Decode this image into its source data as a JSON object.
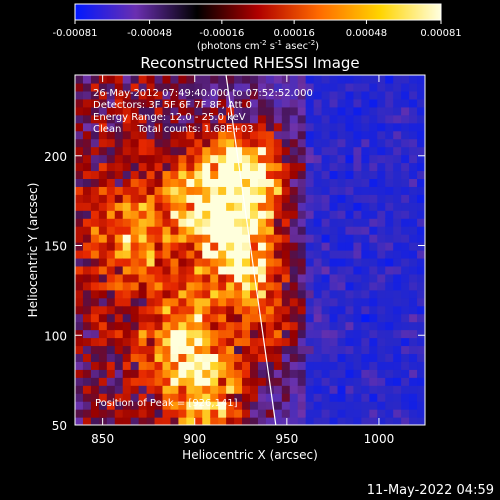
{
  "colorbar": {
    "tick_labels": [
      "-0.00081",
      "-0.00048",
      "-0.00016",
      "0.00016",
      "0.00048",
      "0.00081"
    ],
    "tick_values": [
      -0.00081,
      -0.00048,
      -0.00016,
      0.00016,
      0.00048,
      0.00081
    ],
    "units_prefix": "(photons cm",
    "units_exp1": "-2",
    "units_mid": " s",
    "units_exp2": "-1",
    "units_mid2": " asec",
    "units_exp3": "-2",
    "units_suffix": ")",
    "colors": [
      "#0018ff",
      "#6a2fb0",
      "#000000",
      "#b00000",
      "#ff6a00",
      "#ffd400",
      "#ffffe0"
    ]
  },
  "chart_data": {
    "type": "heatmap",
    "title": "Reconstructed RHESSI Image",
    "xlabel": "Heliocentric X (arcsec)",
    "ylabel": "Heliocentric Y (arcsec)",
    "xlim": [
      835,
      1025
    ],
    "ylim": [
      50,
      245
    ],
    "x_ticks": [
      850,
      900,
      950,
      1000
    ],
    "y_ticks": [
      50,
      100,
      150,
      200
    ],
    "x_tick_labels": [
      "850",
      "900",
      "950",
      "1000"
    ],
    "y_tick_labels": [
      "50",
      "100",
      "150",
      "200"
    ],
    "limb_line": [
      [
        917,
        245
      ],
      [
        944,
        50
      ]
    ],
    "annotations": [
      "26-May-2012 07:49:40.000 to 07:52:52.000",
      "Detectors: 3F 5F 6F 7F 8F, Att 0",
      "Energy Range: 12.0 - 25.0 keV",
      "Clean     Total counts: 1.68E+03"
    ],
    "peak_label": "Position of Peak = [926,141]",
    "peak_position": [
      926,
      141
    ],
    "emission_sources": [
      {
        "x": 931,
        "y": 190,
        "relative_intensity": 0.95
      },
      {
        "x": 924,
        "y": 148,
        "relative_intensity": 1.0
      },
      {
        "x": 906,
        "y": 180,
        "relative_intensity": 0.8
      },
      {
        "x": 893,
        "y": 100,
        "relative_intensity": 0.75
      },
      {
        "x": 907,
        "y": 65,
        "relative_intensity": 0.8
      },
      {
        "x": 867,
        "y": 155,
        "relative_intensity": 0.65
      },
      {
        "x": 940,
        "y": 110,
        "relative_intensity": 0.55
      }
    ]
  },
  "footer": {
    "timestamp": "11-May-2022 04:59"
  }
}
